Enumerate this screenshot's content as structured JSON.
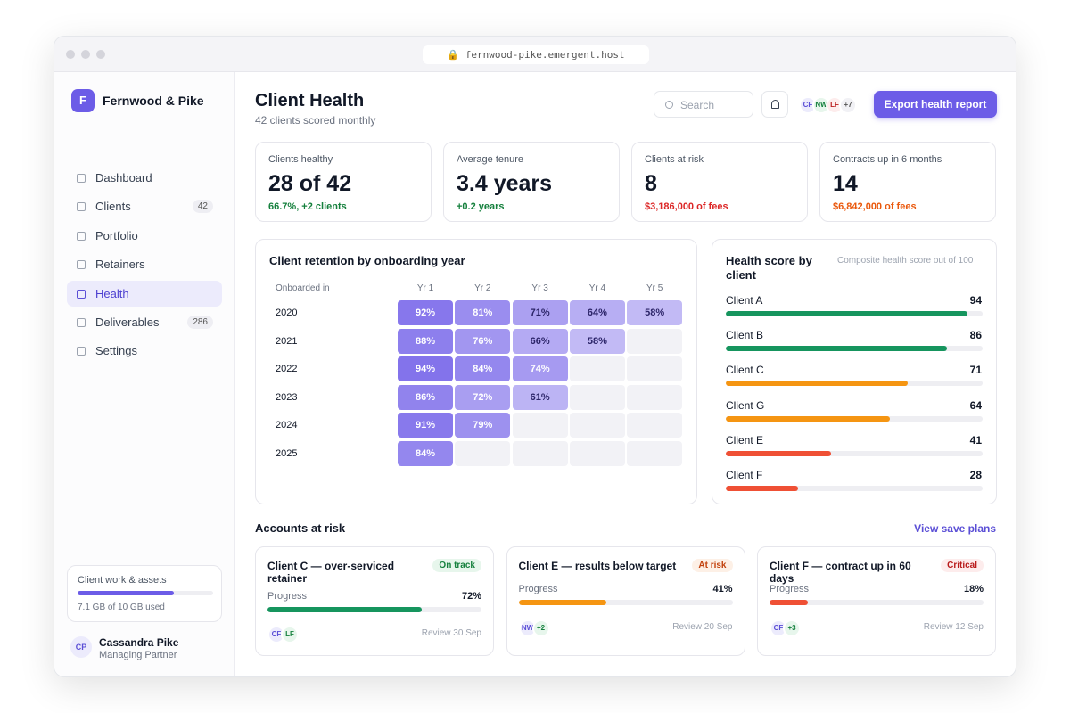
{
  "browser": {
    "url": "fernwood-pike.emergent.host"
  },
  "sidebar": {
    "brand": {
      "logo": "F",
      "name": "Fernwood & Pike"
    },
    "nav": [
      {
        "label": "Dashboard"
      },
      {
        "label": "Clients",
        "badge": 42
      },
      {
        "label": "Portfolio"
      },
      {
        "label": "Retainers"
      },
      {
        "label": "Health",
        "active": true
      },
      {
        "label": "Deliverables",
        "badge": 286
      },
      {
        "label": "Settings"
      }
    ],
    "storage": {
      "title": "Client work & assets",
      "usage": "7.1 GB of 10 GB used"
    },
    "user": {
      "initials": "CP",
      "name": "Cassandra Pike",
      "role": "Managing Partner"
    }
  },
  "header": {
    "title": "Client Health",
    "subtitle": "42 clients scored monthly",
    "search": "Search",
    "avatars": [
      "CF",
      "NW",
      "LF",
      "+7"
    ],
    "export": "Export health report"
  },
  "kpis": [
    {
      "label": "Clients healthy",
      "value": "28 of 42",
      "note": "66.7%, +2 clients",
      "color": "#15803d"
    },
    {
      "label": "Average tenure",
      "value": "3.4 years",
      "note": "+0.2 years",
      "color": "#15803d"
    },
    {
      "label": "Clients at risk",
      "value": "8",
      "note": "$3,186,000 of fees",
      "color": "#dc2626"
    },
    {
      "label": "Contracts up in 6 months",
      "value": "14",
      "note": "$6,842,000 of fees",
      "color": "#ea580c"
    }
  ],
  "retention": {
    "title": "Client retention by onboarding year",
    "row_header": "Onboarded in",
    "columns": [
      "Yr 1",
      "Yr 2",
      "Yr 3",
      "Yr 4",
      "Yr 5"
    ],
    "rows": [
      {
        "year": "2020",
        "cells": [
          {
            "value": 92,
            "label": "92%"
          },
          {
            "value": 81,
            "label": "81%"
          },
          {
            "value": 71,
            "label": "71%"
          },
          {
            "value": 64,
            "label": "64%"
          },
          {
            "value": 58,
            "label": "58%"
          }
        ]
      },
      {
        "year": "2021",
        "cells": [
          {
            "value": 88,
            "label": "88%"
          },
          {
            "value": 76,
            "label": "76%"
          },
          {
            "value": 66,
            "label": "66%"
          },
          {
            "value": 58,
            "label": "58%"
          }
        ]
      },
      {
        "year": "2022",
        "cells": [
          {
            "value": 94,
            "label": "94%"
          },
          {
            "value": 84,
            "label": "84%"
          },
          {
            "value": 74,
            "label": "74%"
          }
        ]
      },
      {
        "year": "2023",
        "cells": [
          {
            "value": 86,
            "label": "86%"
          },
          {
            "value": 72,
            "label": "72%"
          },
          {
            "value": 61,
            "label": "61%"
          }
        ]
      },
      {
        "year": "2024",
        "cells": [
          {
            "value": 91,
            "label": "91%"
          },
          {
            "value": 79,
            "label": "79%"
          }
        ]
      },
      {
        "year": "2025",
        "cells": [
          {
            "value": 84,
            "label": "84%"
          }
        ]
      }
    ]
  },
  "health": {
    "title": "Health score by client",
    "subtitle": "Composite health score out of 100",
    "max": 100,
    "clients": [
      {
        "name": "Client A",
        "score": 94,
        "color": "#16955e"
      },
      {
        "name": "Client B",
        "score": 86,
        "color": "#16955e"
      },
      {
        "name": "Client C",
        "score": 71,
        "color": "#f59512"
      },
      {
        "name": "Client G",
        "score": 64,
        "color": "#f59512"
      },
      {
        "name": "Client E",
        "score": 41,
        "color": "#ef5035"
      },
      {
        "name": "Client F",
        "score": 28,
        "color": "#ef5035"
      }
    ]
  },
  "accounts": {
    "title": "Accounts at risk",
    "link": "View save plans",
    "items": [
      {
        "title": "Client C — over-serviced retainer",
        "status": "On track",
        "status_color": "#15803d",
        "status_bg": "#e7f6ec",
        "progress_label": "Progress",
        "progress": {
          "value": 72,
          "label": "72%"
        },
        "bar_color": "#16955e",
        "avatars": [
          "CF",
          "LF"
        ],
        "review": "Review 30 Sep"
      },
      {
        "title": "Client E — results below target",
        "status": "At risk",
        "status_color": "#c2410c",
        "status_bg": "#fdf0e6",
        "progress_label": "Progress",
        "progress": {
          "value": 41,
          "label": "41%"
        },
        "bar_color": "#f59512",
        "avatars": [
          "NW",
          "+2"
        ],
        "review": "Review 20 Sep"
      },
      {
        "title": "Client F — contract up in 60 days",
        "status": "Critical",
        "status_color": "#b91c1c",
        "status_bg": "#fdecec",
        "progress_label": "Progress",
        "progress": {
          "value": 18,
          "label": "18%"
        },
        "bar_color": "#ef5035",
        "avatars": [
          "CF",
          "+3"
        ],
        "review": "Review 12 Sep"
      }
    ]
  }
}
